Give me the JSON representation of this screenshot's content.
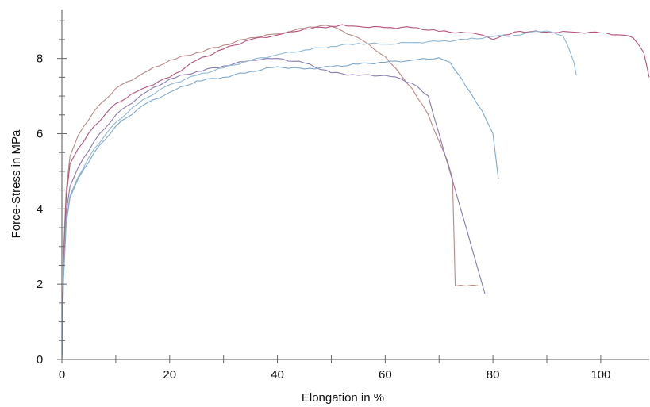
{
  "chart_data": {
    "type": "line",
    "xlabel": "Elongation in %",
    "ylabel": "Force-Stress in MPa",
    "xlim": [
      0,
      109
    ],
    "ylim": [
      0,
      9.3
    ],
    "xticks": [
      0,
      20,
      40,
      60,
      80,
      100
    ],
    "yticks": [
      0,
      2,
      4,
      6,
      8
    ],
    "x_minor_step": 10,
    "y_minor_step": 0.5,
    "grid": false,
    "series": [
      {
        "color": "#b98a86",
        "x": [
          0,
          0.3,
          0.8,
          1.5,
          3,
          6,
          10,
          15,
          20,
          25,
          30,
          35,
          40,
          45,
          48,
          50,
          55,
          60,
          65,
          68,
          70,
          71.5,
          72.5,
          73,
          75,
          77.5
        ],
        "y": [
          0,
          2.8,
          4.5,
          5.4,
          5.95,
          6.6,
          7.2,
          7.6,
          7.95,
          8.15,
          8.35,
          8.55,
          8.65,
          8.8,
          8.87,
          8.85,
          8.55,
          8.05,
          7.2,
          6.5,
          5.8,
          5.3,
          4.8,
          1.95,
          1.95,
          1.95
        ]
      },
      {
        "color": "#b5537e",
        "x": [
          0,
          0.3,
          0.8,
          1.5,
          3,
          6,
          10,
          15,
          20,
          25,
          30,
          35,
          40,
          45,
          50,
          52,
          55,
          60,
          65,
          70,
          75,
          78,
          80,
          82,
          85,
          90,
          95,
          100,
          104,
          106,
          108,
          109
        ],
        "y": [
          0,
          2.5,
          4.3,
          5.2,
          5.6,
          6.2,
          6.8,
          7.2,
          7.5,
          7.95,
          8.25,
          8.5,
          8.62,
          8.78,
          8.85,
          8.9,
          8.85,
          8.82,
          8.82,
          8.72,
          8.68,
          8.62,
          8.5,
          8.62,
          8.72,
          8.7,
          8.7,
          8.68,
          8.62,
          8.55,
          8.15,
          7.5
        ]
      },
      {
        "color": "#8a7ab0",
        "x": [
          0,
          0.3,
          0.8,
          1.5,
          3,
          6,
          10,
          15,
          20,
          25,
          30,
          35,
          38,
          40,
          45,
          50,
          55,
          60,
          63,
          66,
          68,
          70,
          72,
          74,
          76,
          77,
          78.5
        ],
        "y": [
          0,
          2.4,
          3.9,
          4.6,
          5.1,
          5.8,
          6.5,
          7.05,
          7.45,
          7.65,
          7.8,
          7.95,
          8.0,
          8.0,
          7.88,
          7.62,
          7.55,
          7.55,
          7.45,
          7.25,
          7.0,
          6.0,
          5.0,
          4.0,
          3.0,
          2.5,
          1.75
        ]
      },
      {
        "color": "#8fb8d4",
        "x": [
          0,
          0.3,
          0.8,
          1.5,
          3,
          6,
          10,
          15,
          20,
          25,
          30,
          35,
          40,
          45,
          50,
          55,
          60,
          65,
          70,
          75,
          80,
          85,
          88,
          91,
          93,
          94,
          95,
          95.5
        ],
        "y": [
          0,
          2.2,
          3.7,
          4.35,
          4.85,
          5.6,
          6.3,
          6.9,
          7.3,
          7.55,
          7.75,
          7.95,
          8.1,
          8.22,
          8.32,
          8.4,
          8.38,
          8.42,
          8.45,
          8.5,
          8.58,
          8.62,
          8.72,
          8.7,
          8.6,
          8.3,
          7.9,
          7.55
        ]
      },
      {
        "color": "#7ea9cc",
        "x": [
          0,
          0.3,
          0.8,
          1.5,
          3,
          6,
          10,
          15,
          20,
          25,
          30,
          35,
          40,
          45,
          50,
          55,
          60,
          65,
          70,
          72,
          74,
          76,
          78,
          80,
          81
        ],
        "y": [
          0,
          2.1,
          3.6,
          4.3,
          4.8,
          5.5,
          6.2,
          6.75,
          7.1,
          7.4,
          7.5,
          7.65,
          7.78,
          7.72,
          7.78,
          7.85,
          7.9,
          7.95,
          8.02,
          7.9,
          7.5,
          7.05,
          6.6,
          6.0,
          4.8
        ]
      }
    ]
  }
}
